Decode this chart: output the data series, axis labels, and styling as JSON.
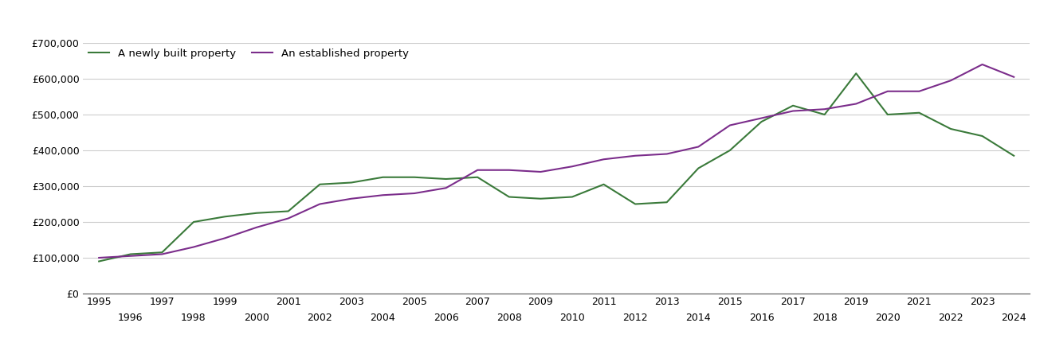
{
  "years": [
    1995,
    1996,
    1997,
    1998,
    1999,
    2000,
    2001,
    2002,
    2003,
    2004,
    2005,
    2006,
    2007,
    2008,
    2009,
    2010,
    2011,
    2012,
    2013,
    2014,
    2015,
    2016,
    2017,
    2018,
    2019,
    2020,
    2021,
    2022,
    2023,
    2024
  ],
  "new_built": [
    90000,
    110000,
    115000,
    200000,
    215000,
    225000,
    230000,
    305000,
    310000,
    325000,
    325000,
    320000,
    325000,
    270000,
    265000,
    270000,
    305000,
    250000,
    255000,
    350000,
    400000,
    480000,
    525000,
    500000,
    615000,
    500000,
    505000,
    460000,
    440000,
    385000
  ],
  "established": [
    100000,
    105000,
    110000,
    130000,
    155000,
    185000,
    210000,
    250000,
    265000,
    275000,
    280000,
    295000,
    345000,
    345000,
    340000,
    355000,
    375000,
    385000,
    390000,
    410000,
    470000,
    490000,
    510000,
    515000,
    530000,
    565000,
    565000,
    595000,
    640000,
    605000
  ],
  "new_color": "#3a7a3a",
  "established_color": "#7b2d8b",
  "new_label": "A newly built property",
  "established_label": "An established property",
  "ylim": [
    0,
    700000
  ],
  "yticks": [
    0,
    100000,
    200000,
    300000,
    400000,
    500000,
    600000,
    700000
  ],
  "background_color": "#ffffff",
  "grid_color": "#cccccc",
  "line_width": 1.5,
  "x_odd_ticks": [
    1995,
    1997,
    1999,
    2001,
    2003,
    2005,
    2007,
    2009,
    2011,
    2013,
    2015,
    2017,
    2019,
    2021,
    2023
  ],
  "x_even_ticks": [
    1996,
    1998,
    2000,
    2002,
    2004,
    2006,
    2008,
    2010,
    2012,
    2014,
    2016,
    2018,
    2020,
    2022,
    2024
  ]
}
